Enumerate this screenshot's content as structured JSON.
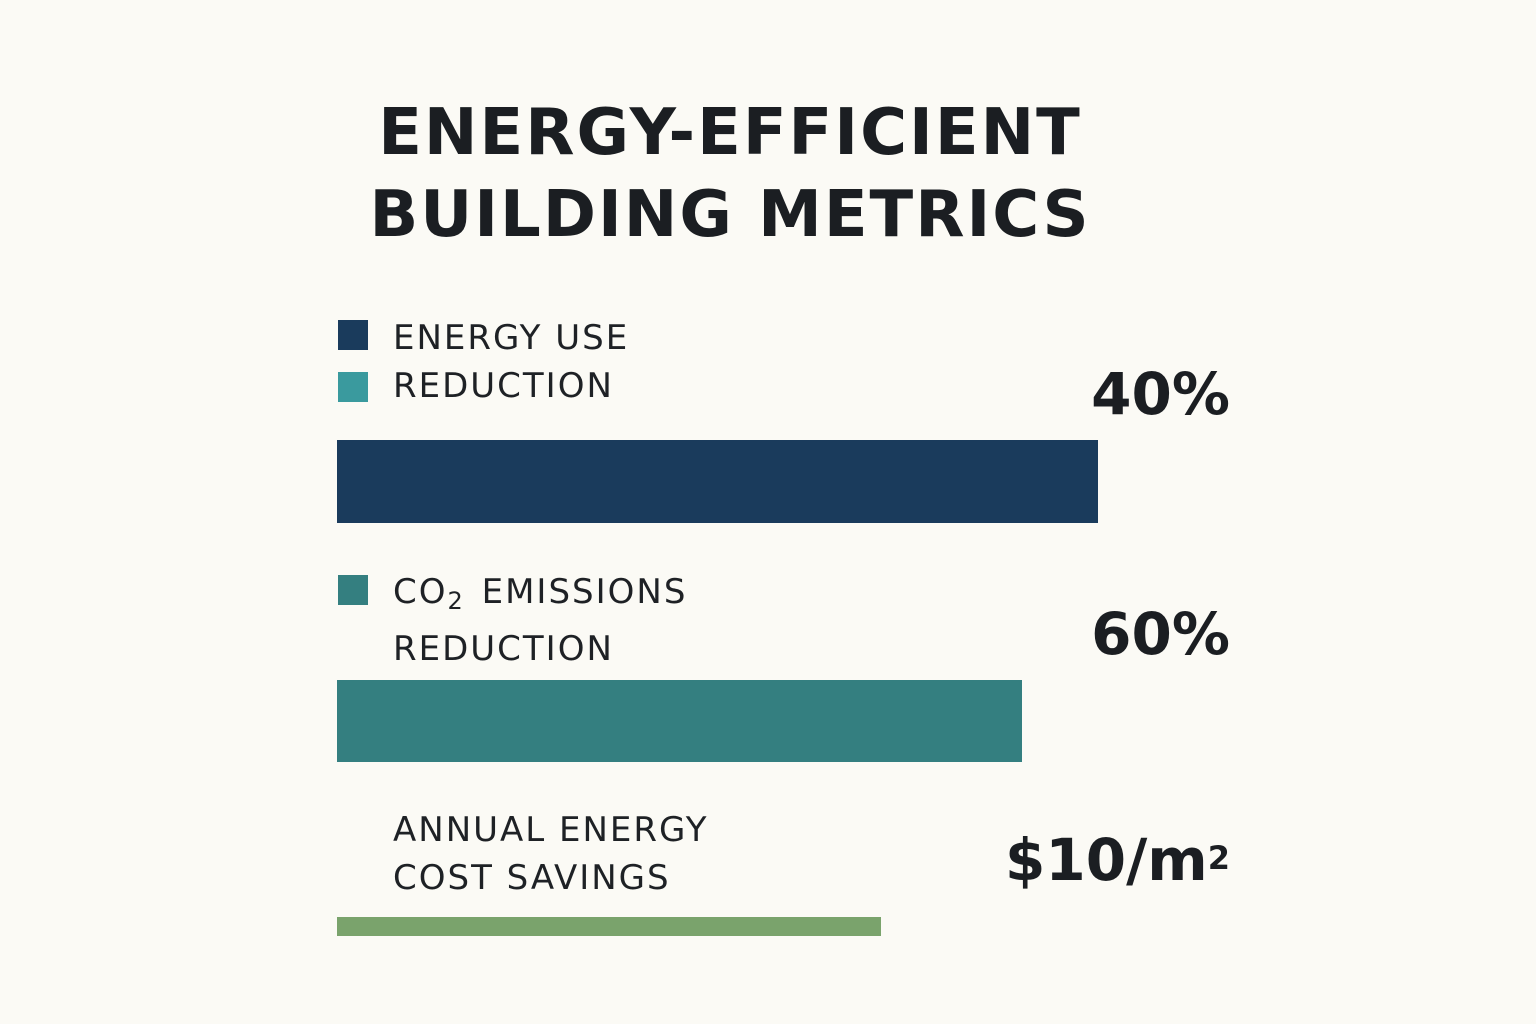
{
  "chart_data": {
    "type": "bar",
    "title_lines": [
      "ENERGY-EFFICIENT",
      "BUILDING METRICS"
    ],
    "metrics": [
      {
        "label_lines": [
          "ENERGY USE",
          "REDUCTION"
        ],
        "value_label": "40%",
        "value": 40,
        "color": "#1a3b5c",
        "legend_colors": [
          "#1a3b5c",
          "#3a9a9e"
        ],
        "bar_fraction": 1.0
      },
      {
        "label_prefix": "CO",
        "label_subscript": "2",
        "label_suffix": " EMISSIONS",
        "label_line2": "REDUCTION",
        "value_label": "60%",
        "value": 60,
        "color": "#347f80",
        "legend_colors": [
          "#347f80"
        ],
        "bar_fraction": 0.9
      },
      {
        "label_lines": [
          "ANNUAL ENERGY",
          "COST SAVINGS"
        ],
        "value_base": "$10/m",
        "value_superscript": "2",
        "value": 10,
        "color": "#7aa36c",
        "bar_fraction": 0.715
      }
    ]
  }
}
